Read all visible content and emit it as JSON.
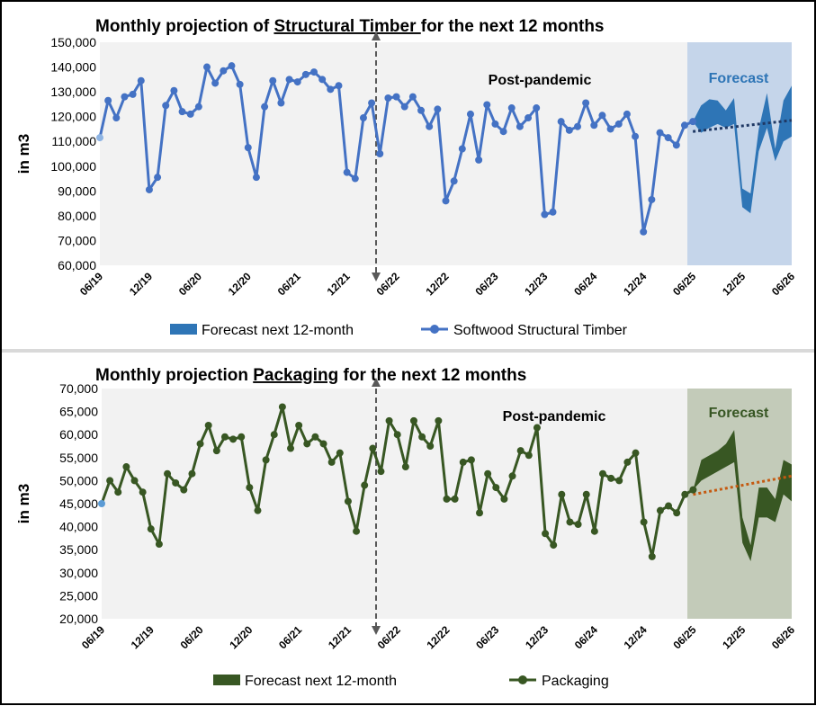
{
  "chart_data": [
    {
      "type": "line",
      "title_parts": [
        "Monthly projection of ",
        "Structural Timber ",
        "for the next 12 months"
      ],
      "title_underline_index": 1,
      "ylabel": "in m3",
      "ylim": [
        60000,
        150000
      ],
      "ytick_step": 10000,
      "y_tick_labels": [
        "60,000",
        "70,000",
        "80,000",
        "90,000",
        "100,000",
        "110,000",
        "120,000",
        "130,000",
        "140,000",
        "150,000"
      ],
      "x_tick_labels": [
        "06/19",
        "12/19",
        "06/20",
        "12/20",
        "06/21",
        "12/21",
        "06/22",
        "12/22",
        "06/23",
        "12/23",
        "06/24",
        "12/24",
        "06/25",
        "12/25",
        "06/26"
      ],
      "history_start": "06/19",
      "annotations": {
        "post_pandemic": "Post-pandemic",
        "forecast": "Forecast"
      },
      "legend": {
        "forecast": "Forecast next 12-month",
        "series": "Softwood Structural Timber"
      },
      "colors": {
        "line": "#4472c4",
        "first_point": "#8eb4e3",
        "band": "#2e75b6",
        "forecast_bg": "#c5d5ea",
        "forecast_text": "#2e75b6",
        "trend": "#1f3864",
        "plot_bg": "#f2f2f2",
        "divider": "#595959"
      },
      "series": [
        {
          "name": "Softwood Structural Timber",
          "values": [
            111500,
            126500,
            119500,
            128000,
            129000,
            134500,
            90500,
            95500,
            124500,
            130500,
            122000,
            121000,
            124000,
            140000,
            133500,
            138500,
            140500,
            133000,
            107500,
            95500,
            124000,
            134500,
            125500,
            135000,
            134000,
            137000,
            138000,
            135000,
            131000,
            132500,
            97500,
            95000,
            119500,
            125500,
            105000,
            127500,
            128000,
            124000,
            128000,
            122500,
            116000,
            123000,
            86000,
            94000,
            107000,
            121000,
            102500,
            124800,
            117000,
            114000,
            123500,
            116000,
            119500,
            123500,
            80500,
            81500,
            118000,
            114500,
            116000,
            125500,
            116500,
            120500,
            115000,
            117000,
            121000,
            112000,
            73500,
            86500,
            113500,
            111500,
            108500,
            116500,
            118000
          ]
        }
      ],
      "forecast_band": {
        "upper": [
          118000,
          124500,
          127000,
          126500,
          122500,
          127500,
          91000,
          89000,
          115000,
          129500,
          107000,
          126500,
          132500
        ],
        "lower": [
          118000,
          113500,
          115500,
          117000,
          115500,
          117000,
          83500,
          81000,
          106000,
          115500,
          102000,
          110000,
          112000
        ]
      },
      "trend": {
        "start": 114000,
        "end": 118500
      }
    },
    {
      "type": "line",
      "title_parts": [
        "Monthly projection ",
        "Packaging",
        " for the next 12 months"
      ],
      "title_underline_index": 1,
      "ylabel": "in m3",
      "ylim": [
        20000,
        70000
      ],
      "ytick_step": 5000,
      "y_tick_labels": [
        "20,000",
        "25,000",
        "30,000",
        "35,000",
        "40,000",
        "45,000",
        "50,000",
        "55,000",
        "60,000",
        "65,000",
        "70,000"
      ],
      "x_tick_labels": [
        "06/19",
        "12/19",
        "06/20",
        "12/20",
        "06/21",
        "12/21",
        "06/22",
        "12/22",
        "06/23",
        "12/23",
        "06/24",
        "12/24",
        "06/25",
        "12/25",
        "06/26"
      ],
      "history_start": "06/19",
      "annotations": {
        "post_pandemic": "Post-pandemic",
        "forecast": "Forecast"
      },
      "legend": {
        "forecast": "Forecast next 12-month",
        "series": "Packaging"
      },
      "colors": {
        "line": "#385723",
        "first_point": "#5b9bd5",
        "band": "#385723",
        "forecast_bg": "#c3cbb9",
        "forecast_text": "#375623",
        "trend": "#c55a11",
        "plot_bg": "#f2f2f2",
        "divider": "#595959"
      },
      "series": [
        {
          "name": "Packaging",
          "values": [
            45000,
            50000,
            47500,
            53000,
            50000,
            47500,
            39500,
            36200,
            51500,
            49500,
            48000,
            51500,
            58000,
            62000,
            56500,
            59500,
            59000,
            59500,
            48500,
            43500,
            54500,
            60000,
            66000,
            57000,
            62000,
            58000,
            59500,
            58000,
            54000,
            56000,
            45500,
            39000,
            49000,
            57000,
            52000,
            63000,
            60000,
            53000,
            63000,
            59500,
            57500,
            63000,
            46000,
            46000,
            54000,
            54500,
            43000,
            51500,
            48500,
            46000,
            51000,
            56500,
            55500,
            61500,
            38500,
            36000,
            47000,
            41000,
            40500,
            47000,
            39000,
            51500,
            50500,
            50000,
            54000,
            56000,
            41000,
            33500,
            43500,
            44500,
            43000,
            47000,
            48000
          ]
        }
      ],
      "forecast_band": {
        "upper": [
          48000,
          54500,
          55500,
          56500,
          58000,
          61000,
          42000,
          36000,
          48500,
          48500,
          46000,
          54500,
          53500
        ],
        "lower": [
          48000,
          50000,
          51000,
          52000,
          53000,
          54000,
          36500,
          32500,
          42000,
          42000,
          41000,
          47000,
          45500
        ]
      },
      "trend": {
        "start": 47000,
        "end": 51000
      }
    }
  ]
}
